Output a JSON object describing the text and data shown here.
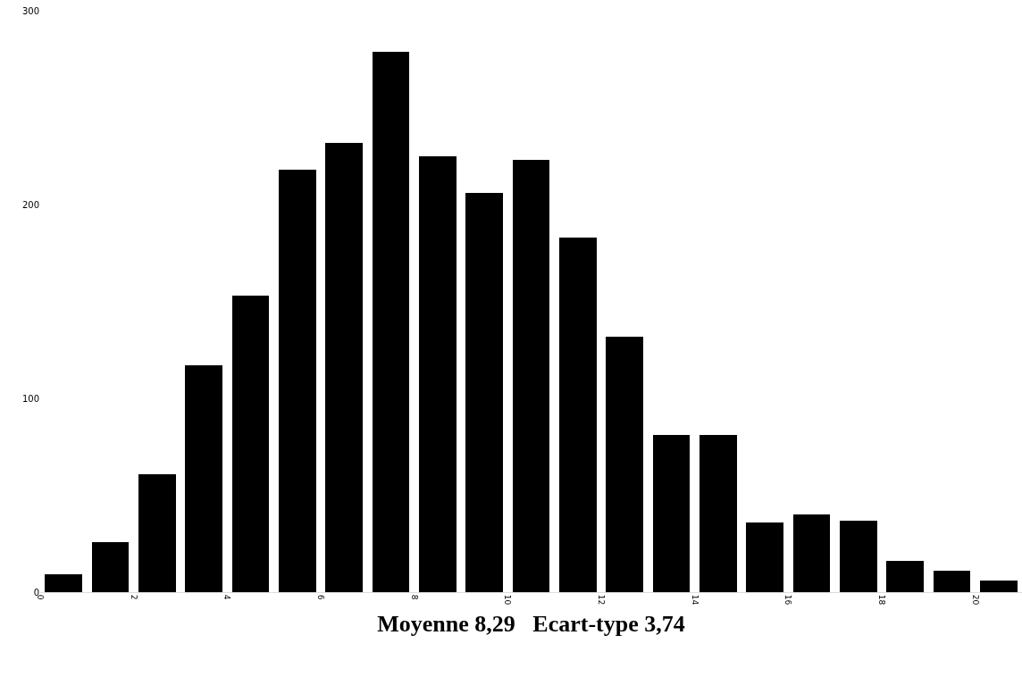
{
  "chart_data": {
    "type": "histogram",
    "xlabel": "Moyenne 8,29   Ecart-type 3,74",
    "bins": [
      0,
      1,
      2,
      3,
      4,
      5,
      6,
      7,
      8,
      9,
      10,
      11,
      12,
      13,
      14,
      15,
      16,
      17,
      18,
      19,
      20,
      21
    ],
    "values": [
      9,
      26,
      61,
      117,
      153,
      218,
      232,
      279,
      225,
      206,
      223,
      183,
      132,
      81,
      81,
      36,
      40,
      37,
      16,
      11,
      6
    ],
    "color": "#000000",
    "xlim": [
      0,
      21
    ],
    "xticks": [
      0,
      2,
      4,
      6,
      8,
      10,
      12,
      14,
      16,
      18,
      20
    ],
    "ylim": [
      0,
      300
    ],
    "yticks": [
      0,
      100,
      200,
      300
    ]
  }
}
